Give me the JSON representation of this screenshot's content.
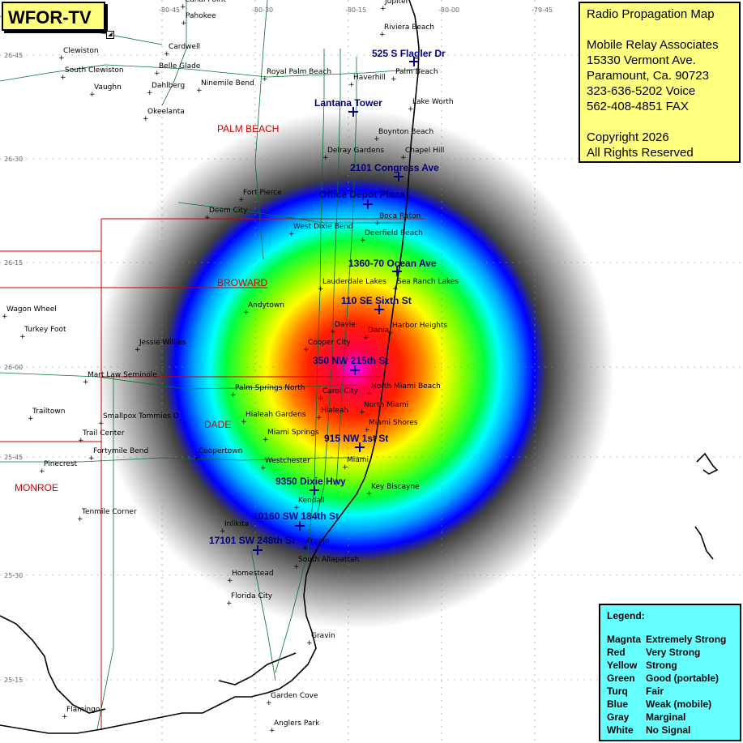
{
  "station": "WFOR-TV",
  "info": {
    "lines": [
      "Radio Propagation Map",
      "",
      "Mobile Relay Associates",
      "15330 Vermont Ave.",
      "Paramount, Ca. 90723",
      "323-636-5202 Voice",
      "562-408-4851 FAX",
      "",
      "Copyright 2026",
      "All Rights Reserved"
    ]
  },
  "legend": {
    "title": "Legend:",
    "items": [
      {
        "color": "Magnta",
        "meaning": "Extremely Strong"
      },
      {
        "color": "Red",
        "meaning": "Very Strong"
      },
      {
        "color": "Yellow",
        "meaning": "Strong"
      },
      {
        "color": "Green",
        "meaning": "Good (portable)"
      },
      {
        "color": "Turq",
        "meaning": "Fair"
      },
      {
        "color": "Blue",
        "meaning": "Weak (mobile)"
      },
      {
        "color": "Gray",
        "meaning": "Marginal"
      },
      {
        "color": "White",
        "meaning": "No Signal"
      }
    ]
  },
  "coords": {
    "lon": [
      "-80-45",
      "-80-30",
      "-80-15",
      "-80-00",
      "-79-45"
    ],
    "lat": [
      "26-45",
      "26-30",
      "26-15",
      "26-00",
      "25-45",
      "25-30",
      "25-15"
    ]
  },
  "counties": [
    "PALM BEACH",
    "BROWARD",
    "DADE",
    "MONROE"
  ],
  "sites": [
    "525 S Flagler Dr",
    "Lantana Tower",
    "2101 Congress Ave",
    "Office Depot Plaza",
    "1360-70 Ocean Ave",
    "110 SE Sixth St",
    "350 NW 215th St",
    "915 NW 1st St",
    "9350 Dixie Hwy",
    "10160 SW 184th St",
    "17101 SW 248th St"
  ],
  "places": [
    "Pahokee",
    "Jupiter",
    "Canal Point",
    "Clewiston",
    "Cardwell",
    "Riviera Beach",
    "Belle Glade",
    "South Clewiston",
    "Royal Palm Beach",
    "Haverhill",
    "Palm Beach",
    "Vaughn",
    "Dahlberg",
    "Ninemile Bend",
    "Lake Worth",
    "Okeelanta",
    "Boynton Beach",
    "Delray Gardens",
    "Chapel Hill",
    "Fort Pierce",
    "Deem City",
    "Boca Raton",
    "West Dixie Bend",
    "Deerfield Beach",
    "Lauderdale Lakes",
    "Sea Ranch Lakes",
    "Wagon Wheel",
    "Andytown",
    "Turkey Foot",
    "Davie",
    "Harbor Heights",
    "Dania",
    "Cooper City",
    "Jessie Willies",
    "Mart Law Seminole",
    "Palm Springs North",
    "Carol City",
    "North Miami Beach",
    "North Miami",
    "Hialeah",
    "Trailtown",
    "Smallpox Tommies O",
    "Hialeah Gardens",
    "Miami Shores",
    "Trail Center",
    "Miami Springs",
    "Fortymile Bend",
    "Coopertown",
    "Pinecrest",
    "Westchester",
    "Miami",
    "Key Biscayne",
    "Kendall",
    "Tenmile Corner",
    "Inlikita",
    "Franjo",
    "South Allapattah",
    "Homestead",
    "Florida City",
    "Gravin",
    "Garden Cove",
    "Flamingo",
    "Anglers Park"
  ],
  "colors": {
    "title_bg": "#ffff80",
    "legend_bg": "#66ffff",
    "county_text": "#cc0000",
    "site_text": "#000080",
    "extremely_strong": "#ff00ff",
    "very_strong": "#ff0000",
    "strong": "#ffff00",
    "good": "#00ff00",
    "fair": "#00ffff",
    "weak": "#0000ff",
    "marginal": "#888888",
    "no_signal": "#ffffff"
  },
  "icons": [
    "site-cross-icon",
    "place-dot-icon",
    "window-corner-icon"
  ]
}
